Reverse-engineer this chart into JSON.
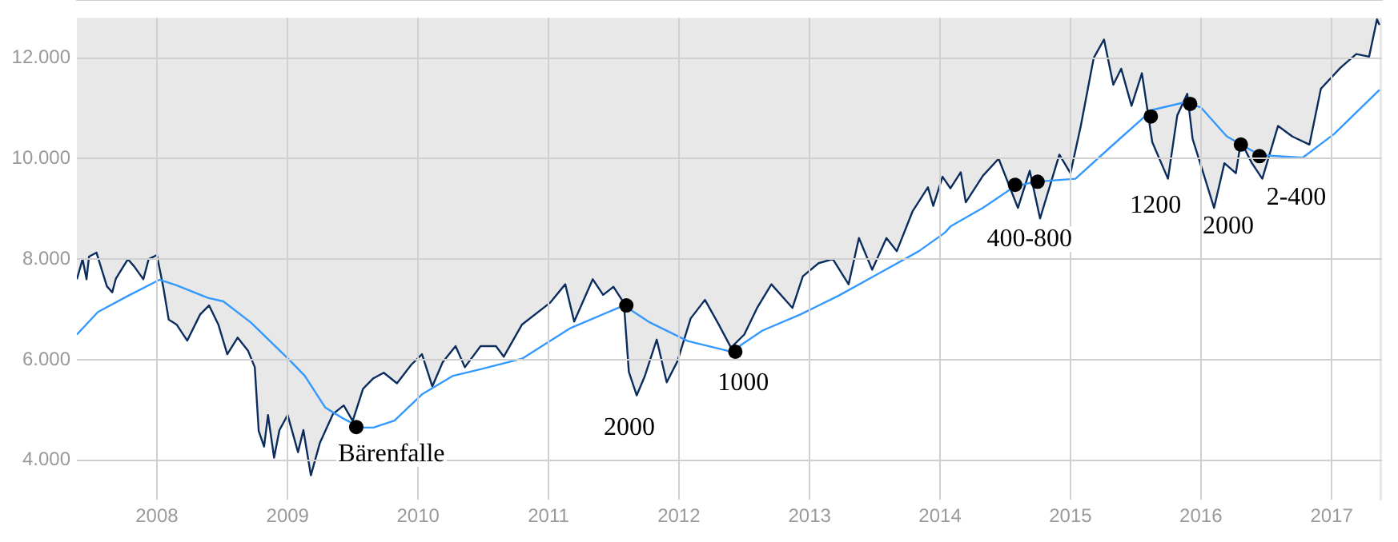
{
  "chart_data": {
    "type": "line",
    "xlim": [
      "2007-05-22",
      "2017-05-22"
    ],
    "ylim": [
      3200,
      12800
    ],
    "xticks": [
      "2008",
      "2009",
      "2010",
      "2011",
      "2012",
      "2013",
      "2014",
      "2015",
      "2016",
      "2017"
    ],
    "yticks": [
      {
        "value": 4000,
        "label": "4.000"
      },
      {
        "value": 6000,
        "label": "6.000"
      },
      {
        "value": 8000,
        "label": "8.000"
      },
      {
        "value": 10000,
        "label": "10.000"
      },
      {
        "value": 12000,
        "label": "12.000"
      }
    ],
    "grid": true,
    "legend": false,
    "series": [
      {
        "type": "area",
        "color": "#0b2d5e",
        "x": [
          "2007-05-22",
          "2007-06-07",
          "2007-06-18",
          "2007-06-25",
          "2007-07-16",
          "2007-08-14",
          "2007-08-29",
          "2007-09-08",
          "2007-10-12",
          "2007-10-30",
          "2007-11-24",
          "2007-12-09",
          "2008-01-01",
          "2008-01-19",
          "2008-02-03",
          "2008-02-25",
          "2008-03-26",
          "2008-05-01",
          "2008-05-26",
          "2008-06-21",
          "2008-07-16",
          "2008-08-14",
          "2008-09-12",
          "2008-10-01",
          "2008-10-12",
          "2008-10-27",
          "2008-11-07",
          "2008-11-24",
          "2008-12-09",
          "2009-01-01",
          "2009-01-30",
          "2009-02-14",
          "2009-03-07",
          "2009-04-01",
          "2009-05-08",
          "2009-06-07",
          "2009-07-02",
          "2009-07-31",
          "2009-08-29",
          "2009-09-27",
          "2009-11-03",
          "2009-12-13",
          "2010-01-12",
          "2010-02-10",
          "2010-03-11",
          "2010-04-16",
          "2010-05-12",
          "2010-06-25",
          "2010-08-07",
          "2010-08-29",
          "2010-10-19",
          "2011-01-05",
          "2011-02-17",
          "2011-03-14",
          "2011-05-05",
          "2011-06-03",
          "2011-07-02",
          "2011-07-31",
          "2011-08-14",
          "2011-09-05",
          "2011-09-27",
          "2011-10-31",
          "2011-11-28",
          "2011-12-28",
          "2012-02-03",
          "2012-03-14",
          "2012-04-20",
          "2012-05-26",
          "2012-07-02",
          "2012-08-07",
          "2012-09-16",
          "2012-11-14",
          "2012-12-13",
          "2013-01-26",
          "2013-03-07",
          "2013-04-20",
          "2013-05-19",
          "2013-06-25",
          "2013-08-04",
          "2013-09-02",
          "2013-10-16",
          "2013-11-28",
          "2013-12-13",
          "2014-01-08",
          "2014-01-30",
          "2014-02-28",
          "2014-03-14",
          "2014-05-01",
          "2014-06-14",
          "2014-08-07",
          "2014-09-09",
          "2014-10-08",
          "2014-12-01",
          "2015-01-01",
          "2015-01-30",
          "2015-03-07",
          "2015-04-05",
          "2015-05-01",
          "2015-05-23",
          "2015-06-21",
          "2015-07-20",
          "2015-08-18",
          "2015-10-01",
          "2015-10-27",
          "2015-11-24",
          "2015-12-09",
          "2016-01-08",
          "2016-02-07",
          "2016-03-07",
          "2016-04-08",
          "2016-04-22",
          "2016-05-23",
          "2016-06-21",
          "2016-08-04",
          "2016-09-13",
          "2016-10-31",
          "2016-12-02",
          "2017-01-26",
          "2017-03-11",
          "2017-04-16",
          "2017-05-08",
          "2017-05-15"
        ],
        "values": [
          7600,
          8000,
          7600,
          8050,
          8130,
          7460,
          7340,
          7610,
          8000,
          7850,
          7600,
          8000,
          8080,
          7440,
          6800,
          6700,
          6380,
          6900,
          7080,
          6700,
          6110,
          6440,
          6180,
          5850,
          4580,
          4270,
          4900,
          4050,
          4600,
          4900,
          4160,
          4600,
          3700,
          4340,
          4920,
          5090,
          4780,
          5420,
          5630,
          5740,
          5530,
          5900,
          6110,
          5470,
          5950,
          6270,
          5850,
          6270,
          6270,
          6060,
          6700,
          7130,
          7500,
          6760,
          7600,
          7290,
          7450,
          7130,
          5760,
          5290,
          5660,
          6400,
          5550,
          5970,
          6820,
          7190,
          6720,
          6240,
          6500,
          7030,
          7500,
          7030,
          7660,
          7920,
          8000,
          7500,
          8420,
          7790,
          8420,
          8160,
          8950,
          9430,
          9060,
          9640,
          9410,
          9730,
          9130,
          9660,
          10000,
          9020,
          9760,
          8810,
          10080,
          9710,
          10650,
          12000,
          12370,
          11470,
          11790,
          11050,
          11700,
          10330,
          9600,
          10860,
          11290,
          10390,
          9710,
          9020,
          9910,
          9710,
          10340,
          9910,
          9600,
          10650,
          10440,
          10280,
          11390,
          11810,
          12080,
          12030,
          12770,
          12660
        ]
      },
      {
        "color": "#3399ff",
        "x": [
          "2007-05-22",
          "2007-07-20",
          "2007-10-12",
          "2008-01-08",
          "2008-02-25",
          "2008-05-23",
          "2008-07-05",
          "2008-09-20",
          "2009-01-05",
          "2009-02-18",
          "2009-04-16",
          "2009-06-03",
          "2009-07-24",
          "2009-08-29",
          "2009-10-27",
          "2010-01-12",
          "2010-04-09",
          "2010-06-25",
          "2010-10-19",
          "2011-03-04",
          "2011-07-31",
          "2011-10-12",
          "2012-01-26",
          "2012-05-26",
          "2012-08-22",
          "2012-12-06",
          "2013-03-22",
          "2013-07-20",
          "2013-11-03",
          "2014-01-15",
          "2014-01-30",
          "2014-05-01",
          "2014-07-27",
          "2014-09-24",
          "2015-01-15",
          "2015-04-23",
          "2015-08-18",
          "2015-11-17",
          "2016-01-01",
          "2016-03-14",
          "2016-06-14",
          "2016-10-12",
          "2017-01-08",
          "2017-05-15"
        ],
        "values": [
          6500,
          6950,
          7270,
          7590,
          7480,
          7230,
          7160,
          6740,
          6000,
          5680,
          5050,
          4840,
          4650,
          4650,
          4790,
          5310,
          5680,
          5810,
          6020,
          6630,
          7080,
          6740,
          6370,
          6160,
          6580,
          6900,
          7270,
          7740,
          8160,
          8530,
          8650,
          9020,
          9440,
          9540,
          9600,
          10230,
          10970,
          11120,
          11020,
          10440,
          10070,
          10020,
          10490,
          11370
        ]
      },
      {
        "type": "scatter",
        "color": "#000000",
        "marker": "circle",
        "x": [
          "2009-07-12",
          "2011-08-07",
          "2012-06-07",
          "2014-07-30",
          "2014-10-01",
          "2015-08-14",
          "2015-12-02",
          "2016-04-22",
          "2016-06-13"
        ],
        "values": [
          4660,
          7080,
          6160,
          9480,
          9540,
          10840,
          11090,
          10280,
          10050
        ]
      }
    ],
    "annotations": [
      {
        "text": "Bärenfalle",
        "x": "2009-07-12",
        "y": 4660
      },
      "2000",
      {
        "text": "1000",
        "x": "2012-06-07",
        "y": 6160
      },
      {
        "text": "400-800",
        "x": "2014-07-30",
        "y": 9480
      },
      {
        "text": "1200",
        "x": "2015-08-14",
        "y": 10840
      },
      "2000",
      {
        "text": "2-400",
        "x": "2016-06-13",
        "y": 10050
      }
    ]
  }
}
